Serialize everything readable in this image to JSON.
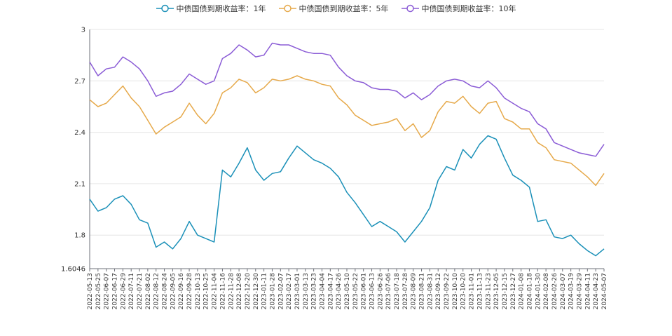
{
  "chart_data": {
    "type": "line",
    "ylim": [
      1.6046,
      3
    ],
    "y_ticks": [
      "1.6046",
      "1.8",
      "2.1",
      "2.4",
      "2.7",
      "3"
    ],
    "y_tick_values": [
      1.6046,
      1.8,
      2.1,
      2.4,
      2.7,
      3.0
    ],
    "grid": true,
    "legend_position": "top-center",
    "x": [
      "2022-05-13",
      "2022-05-25",
      "2022-06-07",
      "2022-06-17",
      "2022-06-29",
      "2022-07-11",
      "2022-07-21",
      "2022-08-02",
      "2022-08-12",
      "2022-08-24",
      "2022-09-05",
      "2022-09-16",
      "2022-09-28",
      "2022-10-13",
      "2022-10-25",
      "2022-11-04",
      "2022-11-16",
      "2022-11-28",
      "2022-12-08",
      "2022-12-20",
      "2022-12-30",
      "2023-01-11",
      "2023-01-28",
      "2023-02-07",
      "2023-02-17",
      "2023-03-01",
      "2023-03-13",
      "2023-03-23",
      "2023-04-04",
      "2023-04-17",
      "2023-04-26",
      "2023-05-10",
      "2023-05-22",
      "2023-06-01",
      "2023-06-13",
      "2023-06-26",
      "2023-07-06",
      "2023-07-18",
      "2023-07-28",
      "2023-08-09",
      "2023-08-21",
      "2023-08-31",
      "2023-09-12",
      "2023-09-22",
      "2023-10-10",
      "2023-10-20",
      "2023-11-01",
      "2023-11-13",
      "2023-11-23",
      "2023-12-05",
      "2023-12-15",
      "2023-12-27",
      "2024-01-08",
      "2024-01-18",
      "2024-01-30",
      "2024-02-08",
      "2024-02-26",
      "2024-03-07",
      "2024-03-19",
      "2024-03-29",
      "2024-04-11",
      "2024-04-23",
      "2024-05-07"
    ],
    "series": [
      {
        "name": "中债国债到期收益率：1年",
        "color": "#1a90b8",
        "values": [
          2.01,
          1.94,
          1.96,
          2.01,
          2.03,
          1.98,
          1.89,
          1.87,
          1.73,
          1.76,
          1.72,
          1.78,
          1.88,
          1.8,
          1.78,
          1.76,
          2.18,
          2.14,
          2.22,
          2.31,
          2.18,
          2.12,
          2.16,
          2.17,
          2.25,
          2.32,
          2.28,
          2.24,
          2.22,
          2.19,
          2.14,
          2.05,
          1.99,
          1.92,
          1.85,
          1.88,
          1.85,
          1.82,
          1.76,
          1.82,
          1.88,
          1.96,
          2.12,
          2.2,
          2.18,
          2.3,
          2.25,
          2.33,
          2.38,
          2.36,
          2.25,
          2.15,
          2.12,
          2.08,
          1.88,
          1.89,
          1.79,
          1.78,
          1.8,
          1.75,
          1.71,
          1.68,
          1.72
        ]
      },
      {
        "name": "中债国债到期收益率：5年",
        "color": "#e6a94a",
        "values": [
          2.59,
          2.55,
          2.57,
          2.62,
          2.67,
          2.6,
          2.55,
          2.47,
          2.39,
          2.43,
          2.46,
          2.49,
          2.57,
          2.5,
          2.45,
          2.51,
          2.63,
          2.66,
          2.71,
          2.69,
          2.63,
          2.66,
          2.71,
          2.7,
          2.71,
          2.73,
          2.71,
          2.7,
          2.68,
          2.67,
          2.6,
          2.56,
          2.5,
          2.47,
          2.44,
          2.45,
          2.46,
          2.48,
          2.41,
          2.45,
          2.37,
          2.41,
          2.52,
          2.58,
          2.57,
          2.61,
          2.55,
          2.51,
          2.57,
          2.58,
          2.48,
          2.46,
          2.42,
          2.42,
          2.34,
          2.31,
          2.24,
          2.23,
          2.22,
          2.18,
          2.14,
          2.09,
          2.16
        ]
      },
      {
        "name": "中债国债到期收益率：10年",
        "color": "#8b5cd6",
        "values": [
          2.81,
          2.73,
          2.77,
          2.78,
          2.84,
          2.81,
          2.77,
          2.7,
          2.61,
          2.63,
          2.64,
          2.68,
          2.74,
          2.71,
          2.68,
          2.7,
          2.83,
          2.86,
          2.91,
          2.88,
          2.84,
          2.85,
          2.92,
          2.91,
          2.91,
          2.89,
          2.87,
          2.86,
          2.86,
          2.85,
          2.78,
          2.73,
          2.7,
          2.69,
          2.66,
          2.65,
          2.65,
          2.64,
          2.6,
          2.63,
          2.59,
          2.62,
          2.67,
          2.7,
          2.71,
          2.7,
          2.67,
          2.66,
          2.7,
          2.66,
          2.6,
          2.57,
          2.54,
          2.52,
          2.45,
          2.42,
          2.34,
          2.32,
          2.3,
          2.28,
          2.27,
          2.26,
          2.33
        ]
      }
    ]
  }
}
